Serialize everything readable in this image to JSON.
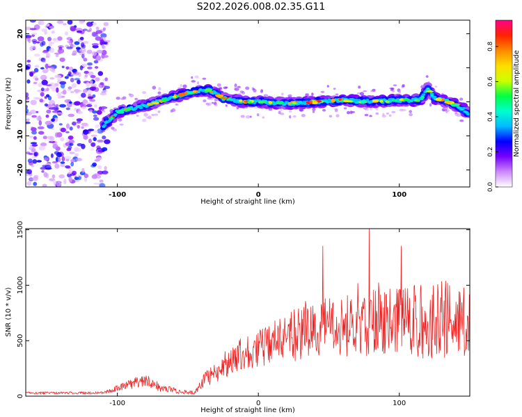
{
  "figure_title": "S202.2026.008.02.35.G11",
  "colors": {
    "snr_line": "#ee2222",
    "colorbar_stops": [
      "#ffffff",
      "#cc88ff",
      "#7700ff",
      "#0000ff",
      "#00bbff",
      "#00ffcc",
      "#00ff44",
      "#ccff00",
      "#ffdd00",
      "#ff8800",
      "#ff2200",
      "#ff0088"
    ]
  },
  "chart_data": [
    {
      "type": "heatmap",
      "title": "S202.2026.008.02.35.G11",
      "xlabel": "Height of straight line (km)",
      "ylabel": "Frequency (Hz)",
      "xlim": [
        -165,
        150
      ],
      "ylim": [
        -25,
        24
      ],
      "xticks": [
        -100,
        0,
        100
      ],
      "yticks": [
        -20,
        -10,
        0,
        10,
        20
      ],
      "colorbar": {
        "label": "Normalized spectral amplitude",
        "range": [
          0.0,
          0.95
        ],
        "ticks": [
          0.0,
          0.2,
          0.4,
          0.6,
          0.8
        ]
      },
      "ridge": {
        "description": "dominant frequency track",
        "x": [
          -110,
          -100,
          -80,
          -60,
          -45,
          -35,
          -25,
          -10,
          0,
          20,
          40,
          60,
          80,
          100,
          115,
          120,
          125,
          135,
          145,
          150
        ],
        "y": [
          -7,
          -3,
          -1,
          1.5,
          3,
          3.5,
          1,
          0,
          0,
          -0.5,
          0,
          0.5,
          0,
          0.5,
          0.5,
          4,
          1,
          0,
          -2,
          -4
        ]
      }
    },
    {
      "type": "line",
      "xlabel": "Height of straight line (km)",
      "ylabel": "SNR (10 * v/v)",
      "xlim": [
        -165,
        150
      ],
      "ylim": [
        0,
        1510
      ],
      "xticks": [
        -100,
        0,
        100
      ],
      "yticks": [
        0,
        500,
        1000,
        1500
      ],
      "series": [
        {
          "name": "SNR",
          "envelope_x": [
            -165,
            -110,
            -95,
            -80,
            -70,
            -55,
            -45,
            -40,
            -30,
            -20,
            -10,
            0,
            10,
            20,
            30,
            40,
            60,
            80,
            100,
            120,
            140,
            150
          ],
          "envelope_y": [
            30,
            30,
            90,
            150,
            80,
            40,
            30,
            120,
            220,
            320,
            400,
            430,
            470,
            520,
            570,
            610,
            630,
            650,
            660,
            680,
            700,
            700
          ],
          "spread_y": [
            10,
            10,
            40,
            60,
            40,
            20,
            15,
            60,
            100,
            140,
            160,
            180,
            200,
            220,
            250,
            270,
            290,
            300,
            320,
            340,
            360,
            360
          ]
        }
      ]
    }
  ]
}
